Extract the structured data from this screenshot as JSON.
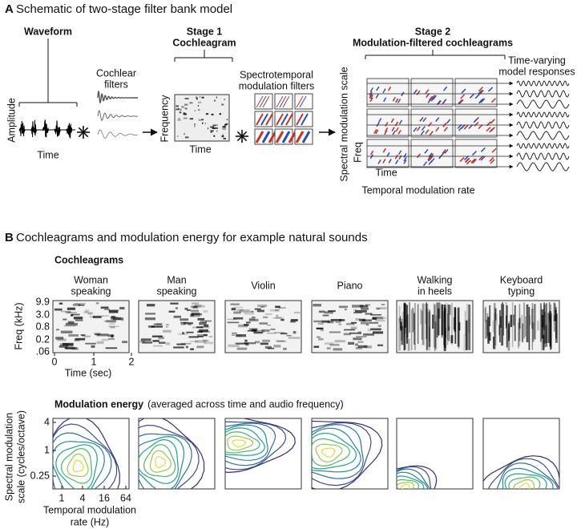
{
  "panel_a": {
    "label": "A",
    "title": "Schematic of two-stage filter bank model",
    "waveform_title": "Waveform",
    "amplitude_label": "Amplitude",
    "waveform_time_label": "Time",
    "cochlear_filters": [
      "Cochlear",
      "filters"
    ],
    "stage1": [
      "Stage 1",
      "Cochleagram"
    ],
    "frequency_label": "Frequency",
    "stage1_time_label": "Time",
    "modulation_filters": [
      "Spectrotemporal",
      "modulation filters"
    ],
    "stage2": [
      "Stage 2",
      "Modulation-filtered cochleagrams"
    ],
    "responses": [
      "Time-varying",
      "model responses"
    ],
    "spectral_axis": "Spectral modulation scale",
    "freq_label": "Freq",
    "stage2_time_label": "Time",
    "temporal_axis": "Temporal modulation rate"
  },
  "panel_b": {
    "label": "B",
    "title": "Cochleagrams and modulation energy for example natural sounds",
    "cochleagrams_heading": "Cochleagrams",
    "sounds": [
      [
        "Woman",
        "speaking"
      ],
      [
        "Man",
        "speaking"
      ],
      [
        "Violin"
      ],
      [
        "Piano"
      ],
      [
        "Walking",
        "in heels"
      ],
      [
        "Keyboard",
        "typing"
      ]
    ],
    "freq_axis_label": "Freq (kHz)",
    "freq_ticks": [
      "9.9",
      "3.0",
      "0.8",
      "0.2",
      ".06"
    ],
    "time_ticks": [
      "0",
      "1",
      "2"
    ],
    "time_axis_label": "Time (sec)",
    "modulation_heading": "Modulation energy",
    "modulation_note": "(averaged across time and audio frequency)",
    "spectral_axis_label": [
      "Spectral modulation",
      "scale (cycles/octave)"
    ],
    "spectral_ticks": [
      "4",
      "1",
      "0.25"
    ],
    "temporal_ticks": [
      "1",
      "4",
      "16",
      "64"
    ],
    "temporal_axis_label": [
      "Temporal modulation",
      "rate (Hz)"
    ]
  }
}
